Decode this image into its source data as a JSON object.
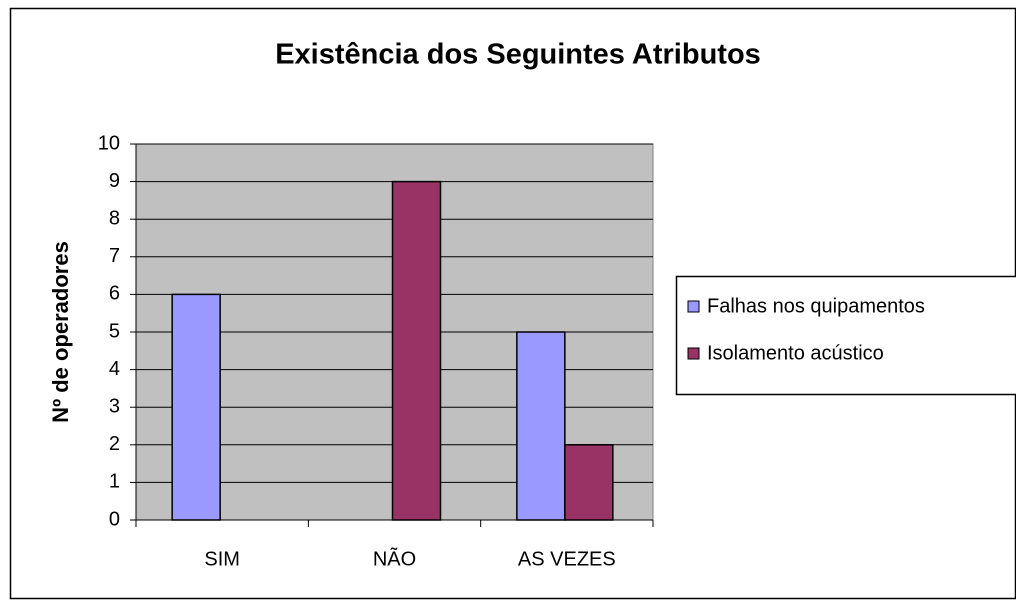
{
  "chart_data": {
    "type": "bar",
    "title": "Existência dos Seguintes Atributos",
    "ylabel": "Nº de operadores",
    "categories": [
      "SIM",
      "NÃO",
      "AS VEZES"
    ],
    "series": [
      {
        "name": "Falhas nos quipamentos",
        "color": "#9999ff",
        "values": [
          6,
          0,
          5
        ]
      },
      {
        "name": "Isolamento acústico",
        "color": "#993366",
        "values": [
          0,
          9,
          2
        ]
      }
    ],
    "ylim": [
      0,
      10
    ],
    "yticks": [
      0,
      1,
      2,
      3,
      4,
      5,
      6,
      7,
      8,
      9,
      10
    ],
    "grid": true,
    "legend": "right"
  }
}
